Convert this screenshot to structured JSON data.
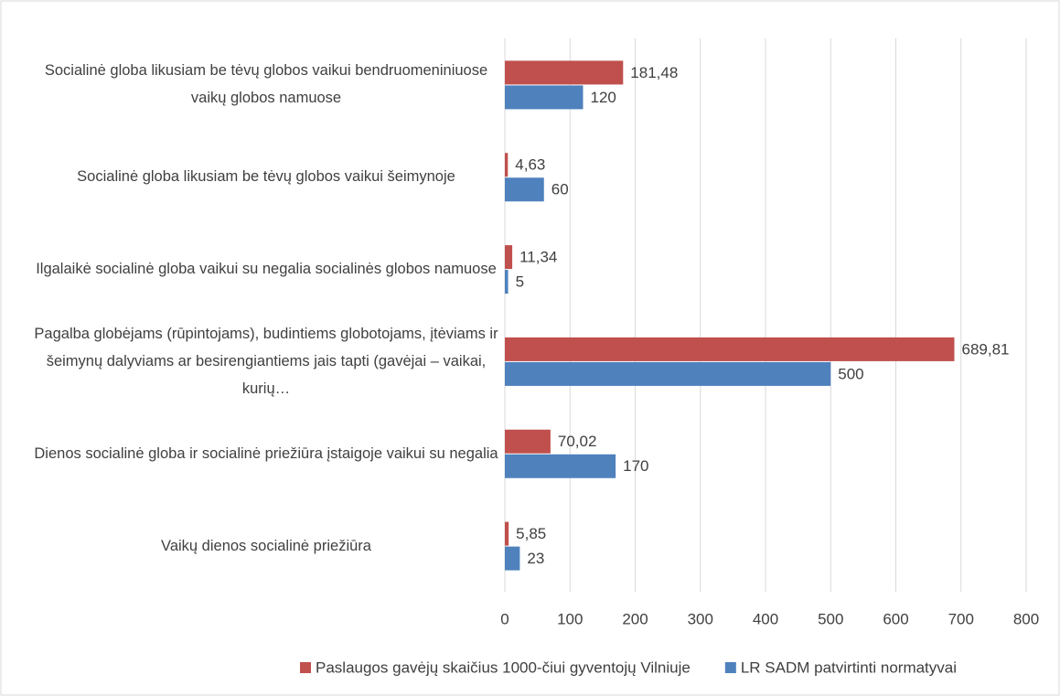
{
  "chart_data": {
    "type": "hbar",
    "categories": [
      "Socialinė globa likusiam be tėvų globos vaikui bendruomeniniuose vaikų globos namuose",
      "Socialinė globa likusiam be tėvų globos vaikui šeimynoje",
      "Ilgalaikė socialinė globa vaikui su negalia socialinės globos namuose",
      "Pagalba globėjams (rūpintojams), budintiems globotojams, įtėviams ir šeimynų dalyviams ar besirengiantiems jais tapti (gavėjai – vaikai, kurių…",
      "Dienos socialinė globa ir socialinė priežiūra įstaigoje vaikui su negalia",
      "Vaikų dienos socialinė priežiūra"
    ],
    "series": [
      {
        "name": "Paslaugos gavėjų skaičius 1000-čiui gyventojų Vilniuje",
        "color": "#c0504d",
        "values": [
          181.48,
          4.63,
          11.34,
          689.81,
          70.02,
          5.85
        ],
        "value_labels": [
          "181,48",
          "4,63",
          "11,34",
          "689,81",
          "70,02",
          "5,85"
        ]
      },
      {
        "name": "LR SADM patvirtinti normatyvai",
        "color": "#4f81bd",
        "values": [
          120,
          60,
          5,
          500,
          170,
          23
        ],
        "value_labels": [
          "120",
          "60",
          "5",
          "500",
          "170",
          "23"
        ]
      }
    ],
    "xlim": [
      0,
      800
    ],
    "xticks": [
      0,
      100,
      200,
      300,
      400,
      500,
      600,
      700,
      800
    ],
    "grid": true,
    "legend": "bottom"
  }
}
